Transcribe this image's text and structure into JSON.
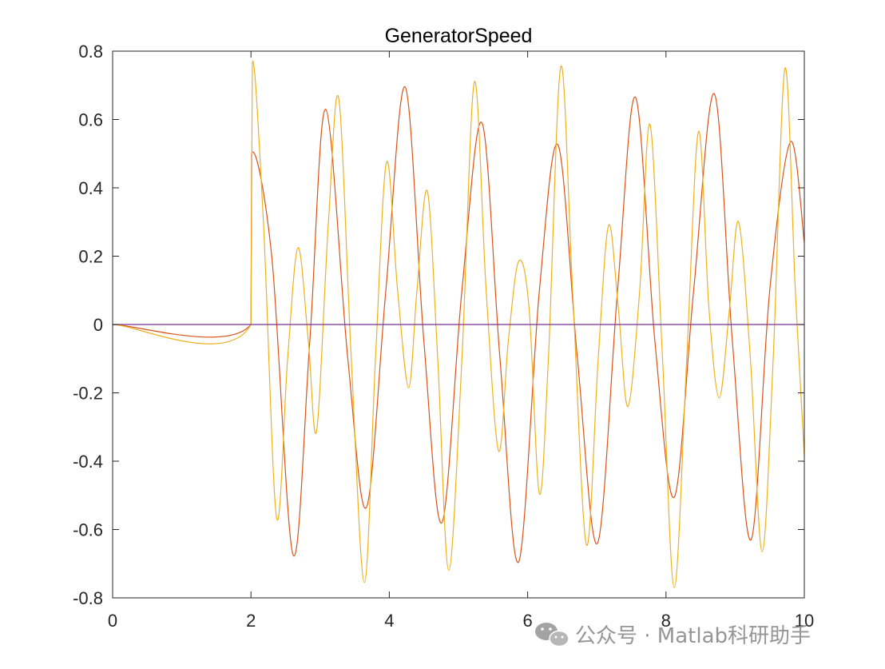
{
  "chart_data": {
    "type": "line",
    "title": "GeneratorSpeed",
    "xlabel": "",
    "ylabel": "",
    "xlim": [
      0,
      10
    ],
    "ylim": [
      -0.8,
      0.8
    ],
    "xticks": [
      0,
      2,
      4,
      6,
      8,
      10
    ],
    "xtick_labels": [
      "0",
      "2",
      "4",
      "6",
      "8",
      "10"
    ],
    "yticks": [
      0.8,
      0.6,
      0.4,
      0.2,
      0,
      -0.2,
      -0.4,
      -0.6,
      -0.8
    ],
    "ytick_labels": [
      "0.8",
      "0.6",
      "0.4",
      "0.2",
      "0",
      "-0.2",
      "-0.4",
      "-0.6",
      "-0.8"
    ],
    "grid": false,
    "legend": "none",
    "series": [
      {
        "color": "#d95319",
        "x": [
          0,
          2,
          2.01,
          2.3,
          2.61,
          2.85,
          3.08,
          3.4,
          3.67,
          3.95,
          4.23,
          4.5,
          4.76,
          5.05,
          5.34,
          5.6,
          5.87,
          6.17,
          6.44,
          6.72,
          7.01,
          7.3,
          7.56,
          7.84,
          8.12,
          8.4,
          8.7,
          8.96,
          9.23,
          9.5,
          9.8,
          10
        ],
        "y": [
          0,
          0,
          0.5,
          0.2,
          -0.675,
          -0.05,
          0.63,
          -0.1,
          -0.535,
          0.1,
          0.695,
          -0.05,
          -0.58,
          0.1,
          0.59,
          -0.1,
          -0.695,
          0.1,
          0.525,
          -0.1,
          -0.64,
          0.1,
          0.665,
          -0.05,
          -0.505,
          0.1,
          0.675,
          -0.05,
          -0.63,
          0.1,
          0.535,
          0.24
        ]
      },
      {
        "color": "#edb120",
        "x": [
          0,
          2,
          2.02,
          2.18,
          2.37,
          2.53,
          2.68,
          2.83,
          2.95,
          3.12,
          3.27,
          3.45,
          3.64,
          3.8,
          3.96,
          4.12,
          4.28,
          4.4,
          4.55,
          4.7,
          4.86,
          5.05,
          5.23,
          5.4,
          5.58,
          5.72,
          5.87,
          6.02,
          6.17,
          6.3,
          6.48,
          6.65,
          6.85,
          7.02,
          7.17,
          7.31,
          7.45,
          7.62,
          7.77,
          7.95,
          8.12,
          8.3,
          8.47,
          8.62,
          8.77,
          8.92,
          9.05,
          9.22,
          9.39,
          9.55,
          9.72,
          9.87,
          10
        ],
        "y": [
          0,
          0,
          0.765,
          0.3,
          -0.565,
          -0.1,
          0.225,
          -0.05,
          -0.31,
          0.3,
          0.66,
          -0.1,
          -0.755,
          -0.1,
          0.475,
          0.1,
          -0.185,
          0.1,
          0.39,
          -0.1,
          -0.72,
          -0.1,
          0.71,
          0.1,
          -0.37,
          -0.05,
          0.185,
          0.05,
          -0.495,
          -0.1,
          0.755,
          0.1,
          -0.645,
          -0.1,
          0.29,
          0.05,
          -0.24,
          0.1,
          0.585,
          -0.1,
          -0.77,
          -0.1,
          0.565,
          0.05,
          -0.215,
          0.05,
          0.3,
          -0.1,
          -0.665,
          -0.1,
          0.75,
          0.1,
          -0.385
        ]
      },
      {
        "color": "#7e2f8e",
        "x": [
          0,
          10
        ],
        "y": [
          0,
          0
        ]
      }
    ]
  },
  "watermark": {
    "text": "公众号 · Matlab科研助手",
    "icon": "wechat-icon"
  }
}
